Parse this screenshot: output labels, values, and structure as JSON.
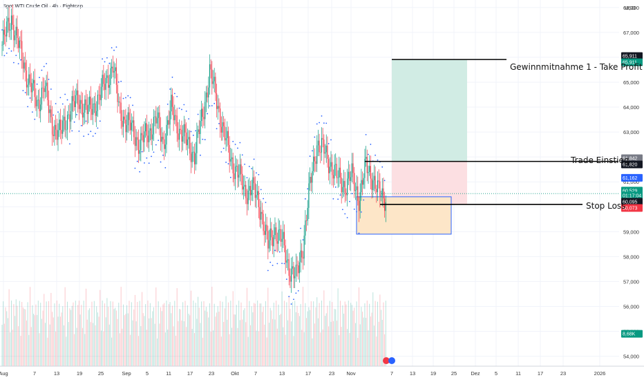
{
  "title": "Spot WTI Crude Oil · 4h · Eightcap",
  "currency": "USD",
  "colors": {
    "up": "#089981",
    "down": "#f23645",
    "sar": "#2962ff",
    "profit": "#d1ece4",
    "risk": "#fcdfe2",
    "box": "#fde6c8",
    "box_border": "#2962ff"
  },
  "y_ticks": [
    "54,000",
    "55,000",
    "56,000",
    "57,000",
    "58,000",
    "59,000",
    "60,000",
    "61,000",
    "62,000",
    "63,000",
    "64,000",
    "65,000",
    "66,000",
    "67,000",
    "68,000"
  ],
  "x_ticks": [
    "Aug",
    "7",
    "13",
    "19",
    "25",
    "Sep",
    "5",
    "11",
    "17",
    "23",
    "Okt",
    "7",
    "13",
    "17",
    "23",
    "Nov",
    "7",
    "13",
    "19",
    "25",
    "Dez",
    "5",
    "11",
    "17",
    "23",
    "2026"
  ],
  "price_tags": [
    {
      "label": "65,911",
      "color": "#131722"
    },
    {
      "label": "65,911",
      "color": "#089981"
    },
    {
      "label": "61,842",
      "color": "#787b86"
    },
    {
      "label": "61,820",
      "color": "#131722"
    },
    {
      "label": "61,162",
      "color": "#2962ff"
    },
    {
      "label": "60,529",
      "color": "#089981"
    },
    {
      "label": "01:17:04",
      "color": "#089981"
    },
    {
      "label": "60,095",
      "color": "#131722"
    },
    {
      "label": "60,073",
      "color": "#f23645"
    },
    {
      "label": "8,68K",
      "color": "#089981"
    }
  ],
  "annotations": {
    "take_profit": "Gewinnmitnahme 1 - Take Profit",
    "entry": "Trade Einstieg",
    "stop_loss": "Stop Loss"
  },
  "chart_data": {
    "type": "candlestick",
    "symbol": "Spot WTI Crude Oil",
    "interval": "4h",
    "ylim": [
      54,
      68
    ],
    "levels": {
      "take_profit": 65.911,
      "entry": 61.82,
      "stop_loss": 60.095,
      "last": 60.529
    },
    "waypoints": [
      [
        0,
        66.5
      ],
      [
        8,
        67.6
      ],
      [
        15,
        66.3
      ],
      [
        22,
        65.2
      ],
      [
        30,
        64.1
      ],
      [
        36,
        64.9
      ],
      [
        42,
        63.4
      ],
      [
        50,
        62.9
      ],
      [
        58,
        63.9
      ],
      [
        66,
        64.3
      ],
      [
        74,
        63.8
      ],
      [
        82,
        64.3
      ],
      [
        88,
        64.9
      ],
      [
        95,
        65.7
      ],
      [
        100,
        64.0
      ],
      [
        106,
        63.4
      ],
      [
        113,
        63.0
      ],
      [
        118,
        62.5
      ],
      [
        124,
        62.9
      ],
      [
        132,
        63.5
      ],
      [
        138,
        62.6
      ],
      [
        145,
        63.9
      ],
      [
        152,
        63.1
      ],
      [
        158,
        62.6
      ],
      [
        165,
        62.1
      ],
      [
        172,
        63.7
      ],
      [
        178,
        65.4
      ],
      [
        184,
        64.3
      ],
      [
        190,
        63.0
      ],
      [
        196,
        61.9
      ],
      [
        202,
        61.4
      ],
      [
        208,
        60.6
      ],
      [
        214,
        60.8
      ],
      [
        222,
        59.9
      ],
      [
        228,
        58.4
      ],
      [
        234,
        59.1
      ],
      [
        240,
        58.6
      ],
      [
        246,
        57.6
      ],
      [
        252,
        57.1
      ],
      [
        258,
        58.5
      ],
      [
        264,
        60.8
      ],
      [
        270,
        62.6
      ],
      [
        276,
        62.2
      ],
      [
        282,
        61.7
      ],
      [
        288,
        61.1
      ],
      [
        294,
        60.9
      ],
      [
        300,
        61.2
      ],
      [
        306,
        60.4
      ],
      [
        312,
        61.6
      ],
      [
        318,
        61.2
      ],
      [
        322,
        60.6
      ],
      [
        326,
        60.4
      ]
    ]
  }
}
